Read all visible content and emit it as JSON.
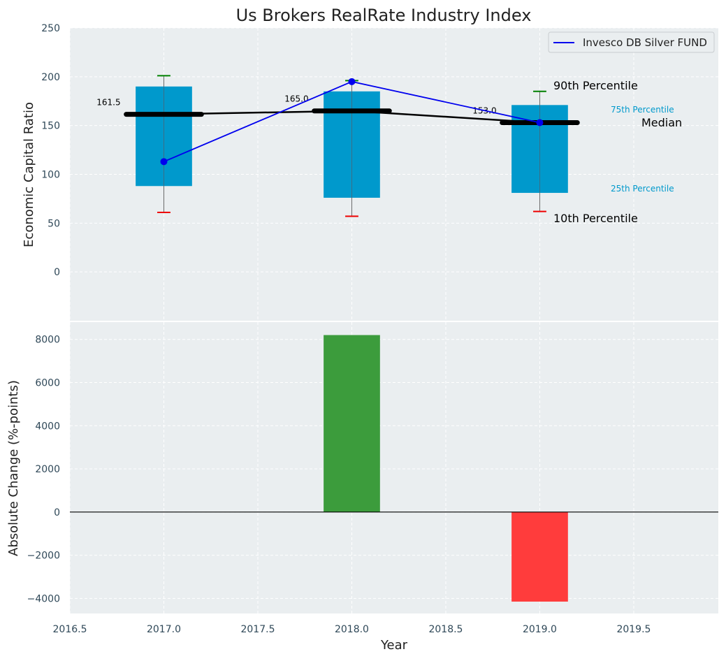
{
  "title": "Us Brokers RealRate Industry Index",
  "colors": {
    "plot_bg": "#eaeef0",
    "box": "#0099cc",
    "median": "#000000",
    "fund": "#0000ee",
    "p90": "#008000",
    "p10": "#ee0000",
    "pos": "#3c9c3c",
    "neg": "#ff3c3c",
    "tick": "#2f4858",
    "pct_label": "#0099cc"
  },
  "chart_data": [
    {
      "type": "box",
      "ylabel": "Economic Capital Ratio",
      "xlim": [
        2016.5,
        2019.95
      ],
      "ylim": [
        -50,
        250
      ],
      "yticks": [
        0,
        50,
        100,
        150,
        200,
        250
      ],
      "grid": true,
      "legend": {
        "position": "top-right",
        "entries": [
          "Invesco DB Silver FUND"
        ]
      },
      "boxes": [
        {
          "x": 2017,
          "p10": 61,
          "p25": 88,
          "median": 161.5,
          "p75": 190,
          "p90": 201,
          "median_label": "161.5"
        },
        {
          "x": 2018,
          "p10": 57,
          "p25": 76,
          "median": 165.0,
          "p75": 185,
          "p90": 196,
          "median_label": "165.0"
        },
        {
          "x": 2019,
          "p10": 62,
          "p25": 81,
          "median": 153.0,
          "p75": 171,
          "p90": 185,
          "median_label": "153.0"
        }
      ],
      "series": [
        {
          "name": "Invesco DB Silver FUND",
          "x": [
            2017,
            2018,
            2019
          ],
          "values": [
            113,
            195,
            153
          ]
        }
      ],
      "annotations": {
        "p90": "90th Percentile",
        "p75": "75th Percentile",
        "median": "Median",
        "p25": "25th Percentile",
        "p10": "10th Percentile"
      }
    },
    {
      "type": "bar",
      "xlabel": "Year",
      "ylabel": "Absolute Change (%-points)",
      "xlim": [
        2016.5,
        2019.95
      ],
      "ylim": [
        -4700,
        8800
      ],
      "yticks": [
        -4000,
        -2000,
        0,
        2000,
        4000,
        6000,
        8000
      ],
      "ytick_labels": [
        "−4000",
        "−2000",
        "0",
        "2000",
        "4000",
        "6000",
        "8000"
      ],
      "xticks": [
        2016.5,
        2017.0,
        2017.5,
        2018.0,
        2018.5,
        2019.0,
        2019.5
      ],
      "xtick_labels": [
        "2016.5",
        "2017.0",
        "2017.5",
        "2018.0",
        "2018.5",
        "2019.0",
        "2019.5"
      ],
      "grid": true,
      "x": [
        2018,
        2019
      ],
      "values": [
        8200,
        -4150
      ]
    }
  ]
}
